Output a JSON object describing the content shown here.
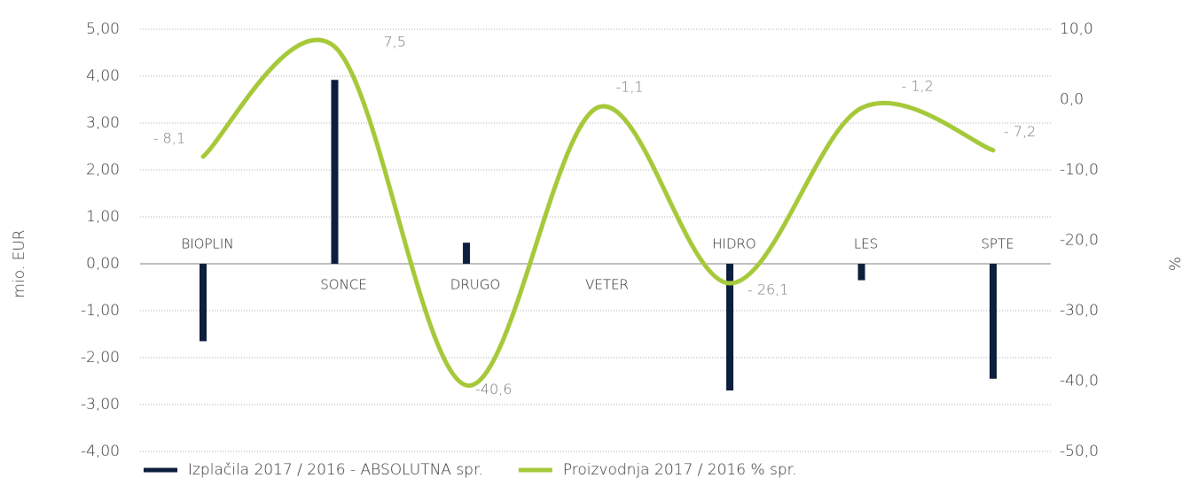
{
  "chart_data": {
    "type": "bar_line",
    "y_label": "mio. EUR",
    "y2_label": "%",
    "categories": [
      "BIOPLIN",
      "SONCE",
      "DRUGO",
      "VETER",
      "HIDRO",
      "LES",
      "SPTE"
    ],
    "series": [
      {
        "name": "Izplačila 2017 / 2016 - ABSOLUTNA spr.",
        "type": "bar",
        "color": "#0d1f3c",
        "values": [
          -1.65,
          3.92,
          0.45,
          0,
          -2.7,
          -0.35,
          -2.45
        ]
      },
      {
        "name": "Proizvodnja 2017 / 2016 % spr.",
        "type": "line",
        "axis": "y2",
        "color": "#a6c93a",
        "values": [
          -8.1,
          7.5,
          -40.6,
          -1.1,
          -26.1,
          -1.2,
          -7.2
        ],
        "value_labels": [
          "- 8,1",
          "7,5",
          "-40,6",
          "-1,1",
          "- 26,1",
          "- 1,2",
          "- 7,2"
        ]
      }
    ],
    "ylim": [
      -4,
      5
    ],
    "yticks": [
      {
        "value": 5,
        "label": "5,00"
      },
      {
        "value": 4,
        "label": "4,00"
      },
      {
        "value": 3,
        "label": "3,00"
      },
      {
        "value": 2,
        "label": "2,00"
      },
      {
        "value": 1,
        "label": "1,00"
      },
      {
        "value": 0,
        "label": "0,00"
      },
      {
        "value": -1,
        "label": "-1,00"
      },
      {
        "value": -2,
        "label": "-2,00"
      },
      {
        "value": -3,
        "label": "-3,00"
      },
      {
        "value": -4,
        "label": "-4,00"
      }
    ],
    "y2lim": [
      -50,
      10
    ],
    "y2ticks": [
      {
        "value": 10,
        "label": "10,0"
      },
      {
        "value": 0,
        "label": "0,0"
      },
      {
        "value": -10,
        "label": "-10,0"
      },
      {
        "value": -20,
        "label": "-20,0"
      },
      {
        "value": -30,
        "label": "-30,0"
      },
      {
        "value": -40,
        "label": "-40,0"
      },
      {
        "value": -50,
        "label": "-50,0"
      }
    ],
    "grid": true,
    "legend": "bottom"
  }
}
